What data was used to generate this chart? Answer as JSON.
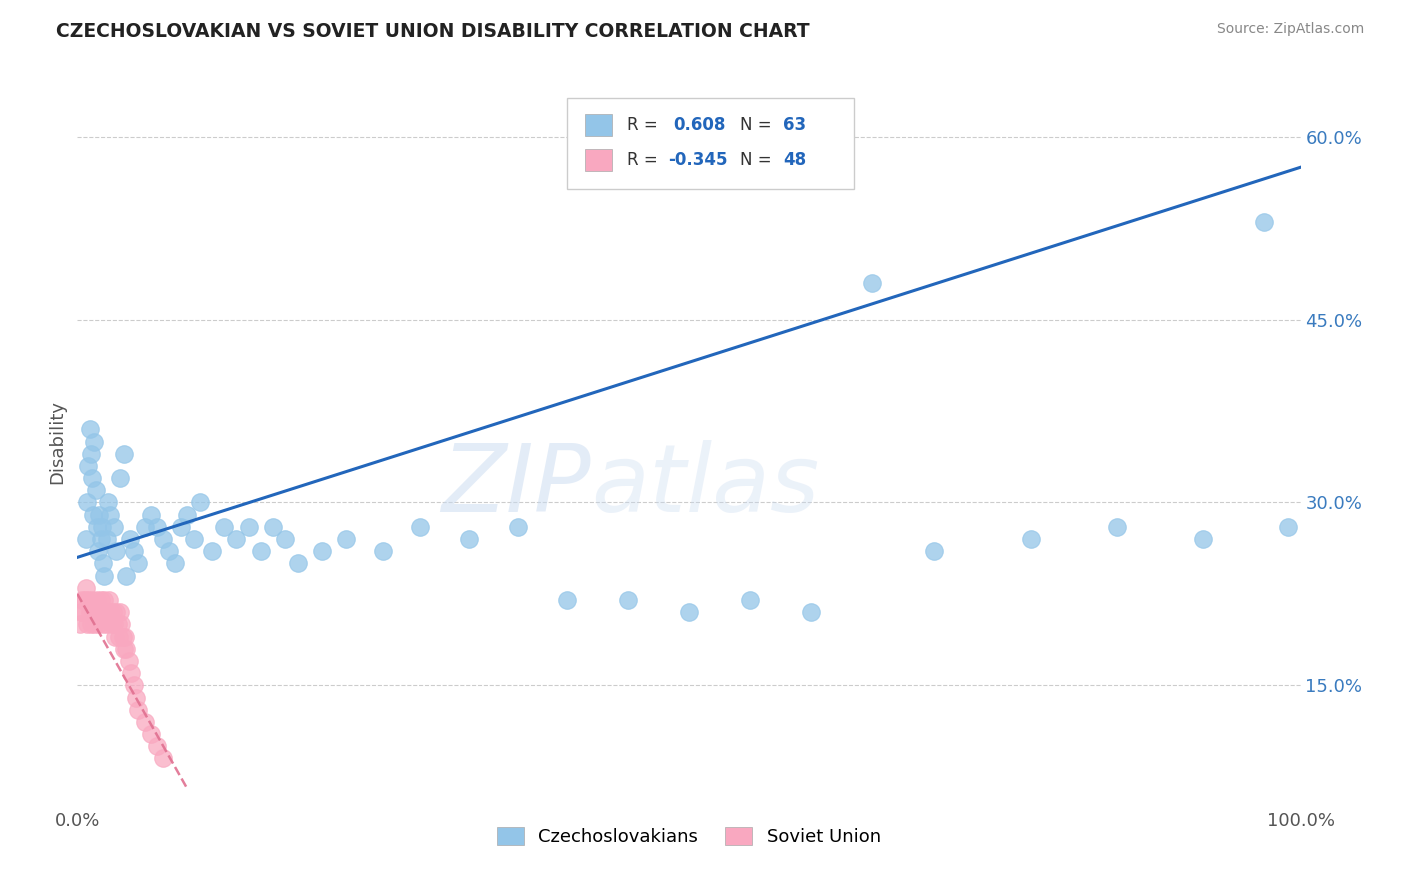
{
  "title": "CZECHOSLOVAKIAN VS SOVIET UNION DISABILITY CORRELATION CHART",
  "source": "Source: ZipAtlas.com",
  "ylabel": "Disability",
  "xlim": [
    0,
    1.0
  ],
  "ylim": [
    0.05,
    0.65
  ],
  "ytick_labels": [
    "15.0%",
    "30.0%",
    "45.0%",
    "60.0%"
  ],
  "ytick_values": [
    0.15,
    0.3,
    0.45,
    0.6
  ],
  "grid_color": "#cccccc",
  "background_color": "#ffffff",
  "blue_color": "#93c5e8",
  "pink_color": "#f9a8c0",
  "line_blue": "#2266bb",
  "line_pink": "#e07090",
  "watermark_zip": "ZIP",
  "watermark_atlas": "atlas",
  "czech_points_x": [
    0.007,
    0.008,
    0.009,
    0.01,
    0.011,
    0.012,
    0.013,
    0.014,
    0.015,
    0.016,
    0.017,
    0.018,
    0.019,
    0.02,
    0.021,
    0.022,
    0.024,
    0.025,
    0.027,
    0.03,
    0.032,
    0.035,
    0.038,
    0.04,
    0.043,
    0.046,
    0.05,
    0.055,
    0.06,
    0.065,
    0.07,
    0.075,
    0.08,
    0.085,
    0.09,
    0.095,
    0.1,
    0.11,
    0.12,
    0.13,
    0.14,
    0.15,
    0.16,
    0.17,
    0.18,
    0.2,
    0.22,
    0.25,
    0.28,
    0.32,
    0.36,
    0.4,
    0.45,
    0.5,
    0.55,
    0.6,
    0.65,
    0.7,
    0.78,
    0.85,
    0.92,
    0.97,
    0.99
  ],
  "czech_points_y": [
    0.27,
    0.3,
    0.33,
    0.36,
    0.34,
    0.32,
    0.29,
    0.35,
    0.31,
    0.28,
    0.26,
    0.29,
    0.27,
    0.28,
    0.25,
    0.24,
    0.27,
    0.3,
    0.29,
    0.28,
    0.26,
    0.32,
    0.34,
    0.24,
    0.27,
    0.26,
    0.25,
    0.28,
    0.29,
    0.28,
    0.27,
    0.26,
    0.25,
    0.28,
    0.29,
    0.27,
    0.3,
    0.26,
    0.28,
    0.27,
    0.28,
    0.26,
    0.28,
    0.27,
    0.25,
    0.26,
    0.27,
    0.26,
    0.28,
    0.27,
    0.28,
    0.22,
    0.22,
    0.21,
    0.22,
    0.21,
    0.48,
    0.26,
    0.27,
    0.28,
    0.27,
    0.53,
    0.28
  ],
  "soviet_points_x": [
    0.002,
    0.003,
    0.004,
    0.005,
    0.006,
    0.007,
    0.008,
    0.009,
    0.01,
    0.011,
    0.012,
    0.013,
    0.014,
    0.015,
    0.016,
    0.017,
    0.018,
    0.019,
    0.02,
    0.021,
    0.022,
    0.023,
    0.024,
    0.025,
    0.026,
    0.027,
    0.028,
    0.029,
    0.03,
    0.031,
    0.032,
    0.033,
    0.034,
    0.035,
    0.036,
    0.037,
    0.038,
    0.039,
    0.04,
    0.042,
    0.044,
    0.046,
    0.048,
    0.05,
    0.055,
    0.06,
    0.065,
    0.07
  ],
  "soviet_points_y": [
    0.2,
    0.21,
    0.22,
    0.21,
    0.22,
    0.23,
    0.2,
    0.22,
    0.21,
    0.2,
    0.22,
    0.21,
    0.2,
    0.21,
    0.22,
    0.2,
    0.21,
    0.22,
    0.21,
    0.2,
    0.22,
    0.21,
    0.2,
    0.21,
    0.22,
    0.21,
    0.2,
    0.21,
    0.2,
    0.19,
    0.21,
    0.2,
    0.19,
    0.21,
    0.2,
    0.19,
    0.18,
    0.19,
    0.18,
    0.17,
    0.16,
    0.15,
    0.14,
    0.13,
    0.12,
    0.11,
    0.1,
    0.09
  ],
  "blue_line_x": [
    0.0,
    1.0
  ],
  "blue_line_y": [
    0.255,
    0.575
  ],
  "pink_line_x": [
    0.0,
    0.09
  ],
  "pink_line_y": [
    0.225,
    0.065
  ]
}
